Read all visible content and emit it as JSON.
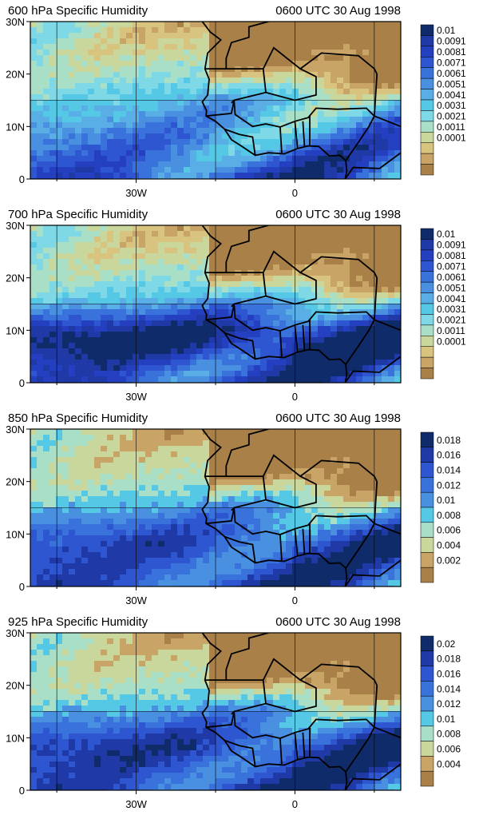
{
  "panels": [
    {
      "title": "600 hPa Specific Humidity",
      "time": "0600 UTC 30 Aug 1998",
      "legend_labels": [
        "0.01",
        "0.0091",
        "0.0081",
        "0.0071",
        "0.0061",
        "0.0051",
        "0.0041",
        "0.0031",
        "0.0021",
        "0.0011",
        "0.0001"
      ],
      "legend_colors": [
        "#102b6a",
        "#1f3aa6",
        "#243fc0",
        "#2e56d0",
        "#3a72dc",
        "#4a90e0",
        "#5aaee6",
        "#55c8e6",
        "#7fd8e6",
        "#a9dfc6",
        "#c9d79c",
        "#d8c47e",
        "#c8a466",
        "#a88048"
      ],
      "humid_bias": 0.0
    },
    {
      "title": "700 hPa Specific Humidity",
      "time": "0600 UTC 30 Aug 1998",
      "legend_labels": [
        "0.01",
        "0.0091",
        "0.0081",
        "0.0071",
        "0.0061",
        "0.0051",
        "0.0041",
        "0.0031",
        "0.0021",
        "0.0011",
        "0.0001"
      ],
      "legend_colors": [
        "#102b6a",
        "#1f3aa6",
        "#243fc0",
        "#2e56d0",
        "#3a72dc",
        "#4a90e0",
        "#5aaee6",
        "#55c8e6",
        "#7fd8e6",
        "#a9dfc6",
        "#c9d79c",
        "#d8c47e",
        "#c8a466",
        "#a88048"
      ],
      "humid_bias": 0.35
    },
    {
      "title": "850 hPa Specific Humidity",
      "time": "0600 UTC 30 Aug 1998",
      "legend_labels": [
        "0.018",
        "0.016",
        "0.014",
        "0.012",
        "0.01",
        "0.008",
        "0.006",
        "0.004",
        "0.002"
      ],
      "legend_colors": [
        "#102b6a",
        "#1f3aa6",
        "#2e56d0",
        "#3a72dc",
        "#4a90e0",
        "#55c8e6",
        "#a9dfc6",
        "#c9d79c",
        "#c8a466",
        "#a88048"
      ],
      "humid_bias": 0.15
    },
    {
      "title": "925 hPa Specific Humidity",
      "time": "0600 UTC 30 Aug 1998",
      "legend_labels": [
        "0.02",
        "0.018",
        "0.016",
        "0.014",
        "0.012",
        "0.01",
        "0.008",
        "0.006",
        "0.004"
      ],
      "legend_colors": [
        "#102b6a",
        "#1f3aa6",
        "#2e56d0",
        "#3a72dc",
        "#4a90e0",
        "#55c8e6",
        "#a9dfc6",
        "#c9d79c",
        "#c8a466",
        "#a88048"
      ],
      "humid_bias": 0.2
    }
  ],
  "axes": {
    "y_ticks": [
      "30N",
      "20N",
      "10N",
      "0"
    ],
    "x_ticks": [
      "30W",
      "0"
    ]
  },
  "colors": {
    "border": "#000000",
    "gridline": "#000000",
    "coast": "#000000"
  }
}
